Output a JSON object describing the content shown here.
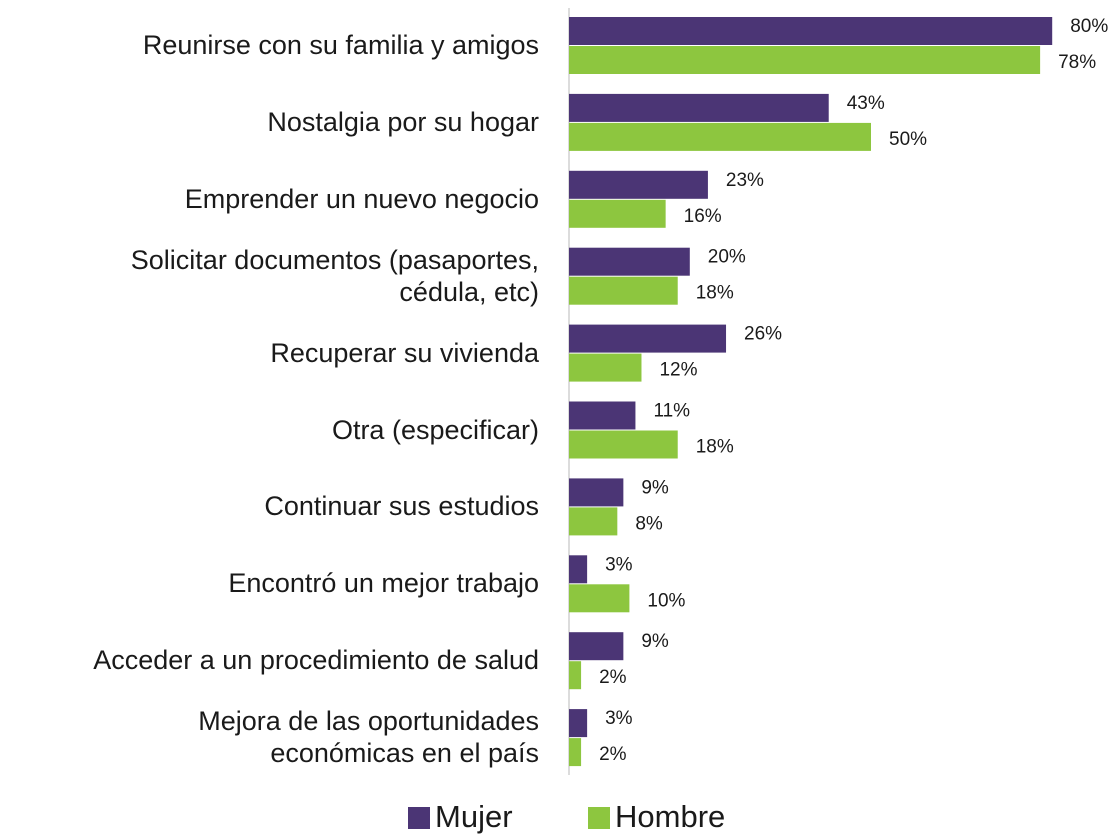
{
  "chart_data": {
    "type": "bar",
    "orientation": "horizontal",
    "categories": [
      "Reunirse con su familia y amigos",
      "Nostalgia por su hogar",
      "Emprender un nuevo negocio",
      "Solicitar documentos (pasaportes,\ncédula, etc)",
      "Recuperar su vivienda",
      "Otra (especificar)",
      "Continuar sus estudios",
      "Encontró un mejor trabajo",
      "Acceder a un procedimiento de salud",
      "Mejora de las oportunidades\neconómicas en el país"
    ],
    "series": [
      {
        "name": "Mujer",
        "color": "#4b3575",
        "values": [
          80,
          43,
          23,
          20,
          26,
          11,
          9,
          3,
          9,
          3
        ],
        "value_labels": [
          "80%",
          "43%",
          "23%",
          "20%",
          "26%",
          "11%",
          "9%",
          "3%",
          "9%",
          "3%"
        ]
      },
      {
        "name": "Hombre",
        "color": "#8dc63f",
        "values": [
          78,
          50,
          16,
          18,
          12,
          18,
          8,
          10,
          2,
          2
        ],
        "value_labels": [
          "78%",
          "50%",
          "16%",
          "18%",
          "12%",
          "18%",
          "8%",
          "10%",
          "2%",
          "2%"
        ]
      }
    ],
    "xlim": [
      0,
      100
    ],
    "legend": "bottom"
  }
}
